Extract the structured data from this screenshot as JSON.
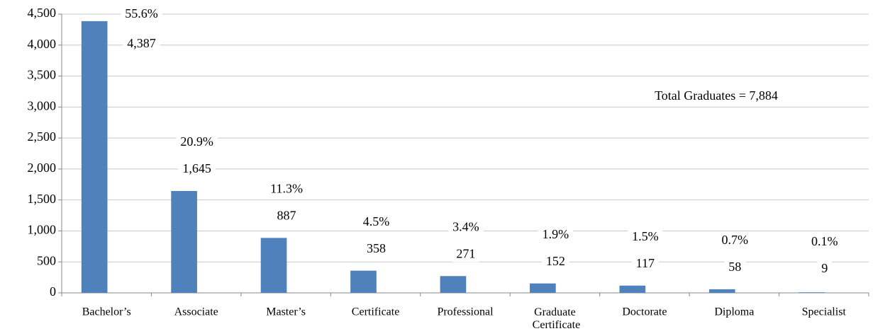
{
  "chart_data": {
    "type": "bar",
    "categories": [
      "Bachelor’s",
      "Associate",
      "Master’s",
      "Certificate",
      "Professional",
      "Graduate Certificate",
      "Doctorate",
      "Diploma",
      "Specialist"
    ],
    "values": [
      4387,
      1645,
      887,
      358,
      271,
      152,
      117,
      58,
      9
    ],
    "value_labels": [
      "4,387",
      "1,645",
      "887",
      "358",
      "271",
      "152",
      "117",
      "58",
      "9"
    ],
    "share_labels": [
      "55.6%",
      "20.9%",
      "11.3%",
      "4.5%",
      "3.4%",
      "1.9%",
      "1.5%",
      "0.7%",
      "0.1%"
    ],
    "color": "#4f81bd",
    "annotation": "Total Graduates = 7,884",
    "ylim": [
      0,
      4500
    ],
    "yticks": [
      {
        "value": 0,
        "label": "0"
      },
      {
        "value": 500,
        "label": "500"
      },
      {
        "value": 1000,
        "label": "1,000"
      },
      {
        "value": 1500,
        "label": "1,500"
      },
      {
        "value": 2000,
        "label": "2,000"
      },
      {
        "value": 2500,
        "label": "2,500"
      },
      {
        "value": 3000,
        "label": "3,000"
      },
      {
        "value": 3500,
        "label": "3,500"
      },
      {
        "value": 4000,
        "label": "4,000"
      },
      {
        "value": 4500,
        "label": "4,500"
      }
    ],
    "grid": true
  }
}
